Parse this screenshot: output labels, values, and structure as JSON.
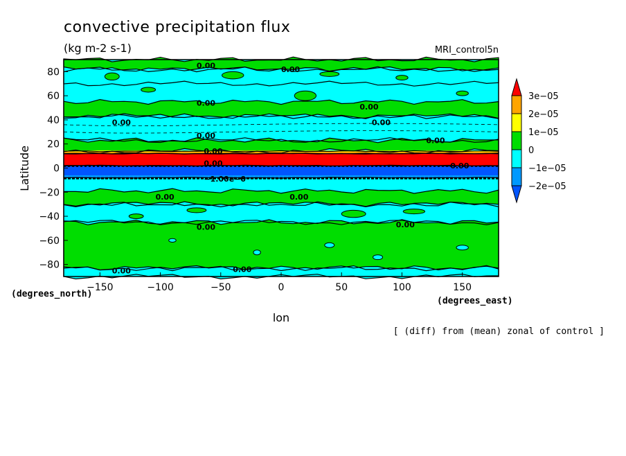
{
  "chart_data": {
    "type": "contour",
    "title": "convective precipitation flux",
    "units": "(kg m-2 s-1)",
    "model_label": "MRI_control5n",
    "xlabel": "lon",
    "ylabel": "Latitude",
    "x_units_label": "(degrees_east)",
    "y_units_label": "(degrees_north)",
    "footnote": "[ (diff) from (mean) zonal of control ]",
    "xlim": [
      -180,
      180
    ],
    "ylim": [
      -90,
      90
    ],
    "x_ticks": [
      -150,
      -100,
      -50,
      0,
      50,
      100,
      150
    ],
    "x_tick_labels": [
      "−150",
      "−100",
      "−50",
      "0",
      "50",
      "100",
      "150"
    ],
    "y_ticks": [
      -80,
      -60,
      -40,
      -20,
      0,
      20,
      40,
      60,
      80
    ],
    "y_tick_labels": [
      "−80",
      "−60",
      "−40",
      "−20",
      "0",
      "20",
      "40",
      "60",
      "80"
    ],
    "colorbar": {
      "levels": [
        "3e−05",
        "2e−05",
        "1e−05",
        "0",
        "−1e−05",
        "−2e−05"
      ],
      "colors": [
        "#ff0000",
        "#ffa500",
        "#ffff00",
        "#00dd00",
        "#00ffff",
        "#0099ff",
        "#0055ff"
      ]
    },
    "bands": [
      {
        "lat_from": 82,
        "lat_to": 90,
        "class": "0 to 1e-05"
      },
      {
        "lat_from": 70,
        "lat_to": 82,
        "class": "-1e-05 to 0"
      },
      {
        "lat_from": 43,
        "lat_to": 55,
        "class": "0 to 1e-05"
      },
      {
        "lat_from": 23,
        "lat_to": 43,
        "class": "-1e-05 to 0"
      },
      {
        "lat_from": 14,
        "lat_to": 23,
        "class": "0 to 1e-05"
      },
      {
        "lat_from": 12,
        "lat_to": 14,
        "class": "1e-05 to 3e-05"
      },
      {
        "lat_from": 2,
        "lat_to": 12,
        "class": "> 3e-05"
      },
      {
        "lat_from": -8,
        "lat_to": 2,
        "class": "< -2e-05"
      },
      {
        "lat_from": -30,
        "lat_to": -19,
        "class": "0 to 1e-05"
      },
      {
        "lat_from": -45,
        "lat_to": -30,
        "class": "-1e-05 to 0"
      },
      {
        "lat_from": -83,
        "lat_to": -45,
        "class": "0 to 1e-05"
      },
      {
        "lat_from": -90,
        "lat_to": -83,
        "class": "-1e-05 to 0"
      }
    ],
    "contour_labels": [
      "0.00",
      "−1.00e−0"
    ]
  }
}
